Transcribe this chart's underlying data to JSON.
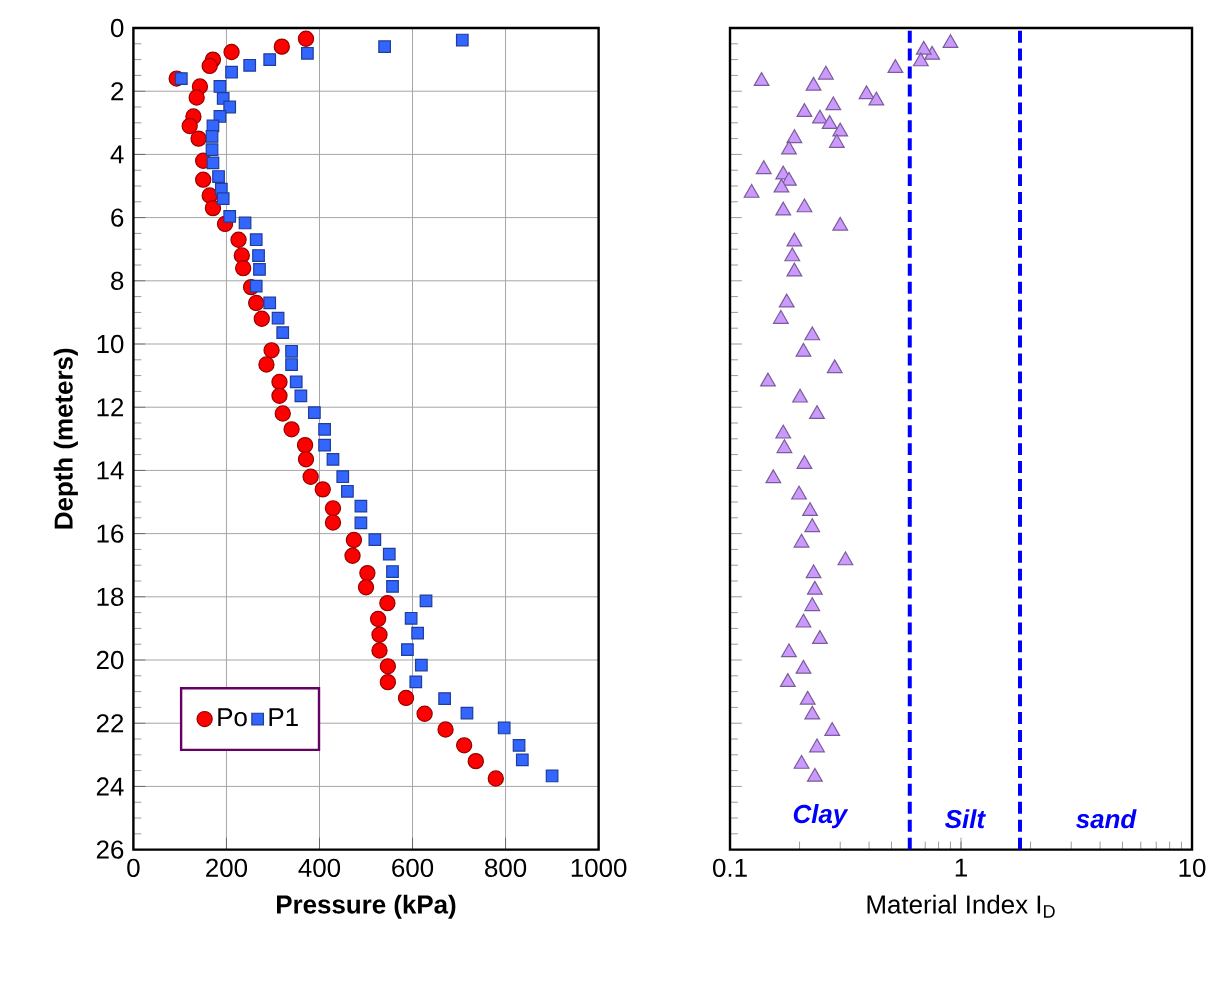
{
  "chart_data": [
    {
      "type": "scatter",
      "xlabel": "Pressure (kPa)",
      "ylabel": "Depth (meters)",
      "xlim": [
        0,
        1000
      ],
      "ylim": [
        26,
        0
      ],
      "xticks": [
        0,
        200,
        400,
        600,
        800,
        1000
      ],
      "yticks": [
        0,
        2,
        4,
        6,
        8,
        10,
        12,
        14,
        16,
        18,
        20,
        22,
        24,
        26
      ],
      "grid": true,
      "legend": "bottom left",
      "series": [
        {
          "name": "Po",
          "color": "#ff0000",
          "marker": "circle",
          "x": [
            371,
            319,
            211,
            171,
            164,
            93,
            143,
            136,
            129,
            121,
            140,
            150,
            150,
            164,
            171,
            197,
            226,
            233,
            236,
            253,
            264,
            276,
            297,
            286,
            314,
            314,
            321,
            340,
            369,
            371,
            381,
            407,
            429,
            429,
            474,
            471,
            503,
            500,
            546,
            526,
            529,
            529,
            547,
            547,
            586,
            626,
            671,
            711,
            736,
            779
          ],
          "values": [
            0.34,
            0.59,
            0.76,
            1.0,
            1.2,
            1.6,
            1.85,
            2.2,
            2.8,
            3.1,
            3.5,
            4.2,
            4.8,
            5.3,
            5.7,
            6.2,
            6.7,
            7.2,
            7.6,
            8.2,
            8.7,
            9.2,
            10.2,
            10.65,
            11.2,
            11.64,
            12.2,
            12.7,
            13.2,
            13.65,
            14.2,
            14.6,
            15.2,
            15.65,
            16.2,
            16.7,
            17.25,
            17.7,
            18.2,
            18.7,
            19.2,
            19.7,
            20.2,
            20.7,
            21.2,
            21.7,
            22.2,
            22.7,
            23.2,
            23.75
          ]
        },
        {
          "name": "P1",
          "color": "#3366ff",
          "marker": "square",
          "x": [
            707,
            540,
            374,
            293,
            250,
            211,
            103,
            186,
            193,
            207,
            186,
            171,
            169,
            169,
            171,
            183,
            189,
            193,
            207,
            240,
            264,
            269,
            271,
            264,
            293,
            311,
            321,
            340,
            340,
            350,
            360,
            389,
            411,
            411,
            429,
            450,
            460,
            489,
            489,
            519,
            550,
            557,
            557,
            629,
            597,
            611,
            589,
            619,
            607,
            669,
            717,
            797,
            829,
            836,
            900
          ],
          "values": [
            0.38,
            0.59,
            0.8,
            1.0,
            1.18,
            1.4,
            1.6,
            1.85,
            2.23,
            2.5,
            2.8,
            3.1,
            3.43,
            3.85,
            4.27,
            4.7,
            5.1,
            5.4,
            5.96,
            6.17,
            6.7,
            7.2,
            7.64,
            8.17,
            8.7,
            9.18,
            9.64,
            10.23,
            10.65,
            11.2,
            11.64,
            12.17,
            12.7,
            13.2,
            13.65,
            14.2,
            14.66,
            15.13,
            15.66,
            16.19,
            16.65,
            17.2,
            17.67,
            18.13,
            18.68,
            19.15,
            19.67,
            20.16,
            20.69,
            21.22,
            21.68,
            22.15,
            22.7,
            23.16,
            23.67
          ]
        }
      ]
    },
    {
      "type": "scatter",
      "xlabel": "Material Index I$_{D}$",
      "xlim": [
        0.1,
        10
      ],
      "ylim": [
        26,
        0
      ],
      "xticks": [
        0.1,
        1,
        10
      ],
      "yticks": [
        0,
        2,
        4,
        6,
        8,
        10,
        12,
        14,
        16,
        18,
        20,
        22,
        24,
        26
      ],
      "log": "x",
      "tick_labels": "x",
      "series": [
        {
          "color": "#cc99ff",
          "marker": "triangle",
          "x": [
            0.9,
            0.75,
            0.69,
            0.67,
            0.52,
            0.137,
            0.26,
            0.23,
            0.39,
            0.43,
            0.28,
            0.21,
            0.245,
            0.27,
            0.3,
            0.19,
            0.29,
            0.18,
            0.14,
            0.17,
            0.18,
            0.124,
            0.167,
            0.17,
            0.21,
            0.3,
            0.19,
            0.186,
            0.19,
            0.176,
            0.166,
            0.227,
            0.208,
            0.284,
            0.146,
            0.201,
            0.238,
            0.17,
            0.172,
            0.21,
            0.154,
            0.199,
            0.222,
            0.227,
            0.204,
            0.316,
            0.23,
            0.233,
            0.227,
            0.208,
            0.245,
            0.18,
            0.208,
            0.178,
            0.217,
            0.227,
            0.277,
            0.238,
            0.204,
            0.233
          ],
          "values": [
            0.48,
            0.85,
            0.69,
            1.06,
            1.27,
            1.68,
            1.48,
            1.83,
            2.1,
            2.3,
            2.45,
            2.66,
            2.87,
            3.04,
            3.28,
            3.49,
            3.64,
            3.85,
            4.47,
            4.64,
            4.84,
            5.22,
            5.05,
            5.78,
            5.68,
            6.26,
            6.76,
            7.23,
            7.71,
            8.69,
            9.21,
            9.73,
            10.25,
            10.77,
            11.19,
            11.7,
            12.22,
            12.84,
            13.3,
            13.8,
            14.25,
            14.77,
            15.29,
            15.8,
            16.29,
            16.85,
            17.26,
            17.78,
            18.3,
            18.82,
            19.34,
            19.76,
            20.28,
            20.7,
            21.26,
            21.73,
            22.25,
            22.77,
            23.29,
            23.7
          ]
        }
      ],
      "ref_lines": [
        {
          "axis": "x",
          "value": 0.6,
          "color": "#0000ff",
          "line_style": "dashed"
        },
        {
          "axis": "x",
          "value": 1.8,
          "color": "#0000ff",
          "line_style": "dashed"
        }
      ],
      "annotations": [
        "Clay",
        "Silt",
        "sand"
      ]
    }
  ]
}
